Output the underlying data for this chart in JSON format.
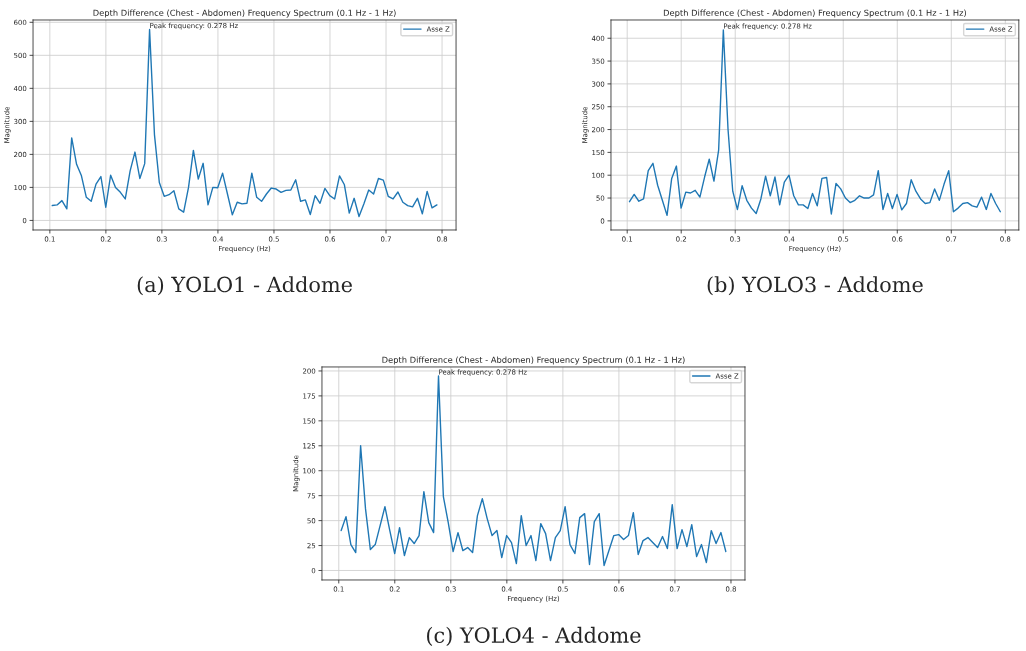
{
  "chart_data": [
    {
      "type": "line",
      "title": "Depth Difference (Chest - Abdomen) Frequency Spectrum (0.1 Hz - 1 Hz)",
      "xlabel": "Frequency (Hz)",
      "ylabel": "Magnitude",
      "x": [
        0.1043,
        0.1129,
        0.1216,
        0.1303,
        0.139,
        0.1477,
        0.1564,
        0.1651,
        0.1738,
        0.1824,
        0.1911,
        0.1998,
        0.2085,
        0.2172,
        0.2259,
        0.2346,
        0.2433,
        0.2519,
        0.2606,
        0.2693,
        0.278,
        0.2867,
        0.2954,
        0.3041,
        0.3128,
        0.3214,
        0.3301,
        0.3388,
        0.3475,
        0.3562,
        0.3649,
        0.3736,
        0.3823,
        0.3909,
        0.3996,
        0.4083,
        0.417,
        0.4257,
        0.4344,
        0.4431,
        0.4518,
        0.4605,
        0.4692,
        0.4779,
        0.4866,
        0.4953,
        0.504,
        0.5127,
        0.5214,
        0.5301,
        0.5388,
        0.5475,
        0.5561,
        0.5648,
        0.5735,
        0.5822,
        0.5909,
        0.5996,
        0.6083,
        0.617,
        0.6257,
        0.6344,
        0.6431,
        0.6518,
        0.6604,
        0.6691,
        0.6778,
        0.6865,
        0.6952,
        0.7039,
        0.7126,
        0.7213,
        0.73,
        0.7387,
        0.7474,
        0.7561,
        0.7648,
        0.7734,
        0.7821,
        0.7908
      ],
      "series": [
        {
          "name": "Asse Z",
          "color": "#1f77b4",
          "values": [
            45,
            47,
            60,
            35,
            250,
            170,
            135,
            70,
            58,
            110,
            133,
            40,
            137,
            100,
            85,
            65,
            150,
            207,
            127,
            172,
            578,
            260,
            115,
            73,
            78,
            90,
            35,
            25,
            100,
            212,
            125,
            173,
            47,
            100,
            99,
            143,
            80,
            17,
            55,
            50,
            52,
            143,
            70,
            58,
            80,
            98,
            95,
            85,
            91,
            92,
            123,
            58,
            62,
            18,
            75,
            52,
            97,
            75,
            65,
            135,
            108,
            22,
            67,
            12,
            50,
            92,
            80,
            127,
            122,
            73,
            65,
            86,
            55,
            45,
            41,
            67,
            20,
            88,
            38,
            47
          ]
        }
      ],
      "xlim": [
        0.07,
        0.825
      ],
      "xticks": [
        0.1,
        0.2,
        0.3,
        0.4,
        0.5,
        0.6,
        0.7,
        0.8
      ],
      "ylim": [
        -29,
        607
      ],
      "yticks": [
        0,
        100,
        200,
        300,
        400,
        500,
        600
      ],
      "grid": true,
      "legend": "top right",
      "subtitle": "(a) YOLO1 - Addome",
      "annotations": [
        "Peak frequency: 0.278 Hz"
      ]
    },
    {
      "type": "line",
      "title": "Depth Difference (Chest - Abdomen) Frequency Spectrum (0.1 Hz - 1 Hz)",
      "xlabel": "Frequency (Hz)",
      "ylabel": "Magnitude",
      "x": [
        0.1043,
        0.1129,
        0.1216,
        0.1303,
        0.139,
        0.1477,
        0.1564,
        0.1651,
        0.1738,
        0.1824,
        0.1911,
        0.1998,
        0.2085,
        0.2172,
        0.2259,
        0.2346,
        0.2433,
        0.2519,
        0.2606,
        0.2693,
        0.278,
        0.2867,
        0.2954,
        0.3041,
        0.3128,
        0.3214,
        0.3301,
        0.3388,
        0.3475,
        0.3562,
        0.3649,
        0.3736,
        0.3823,
        0.3909,
        0.3996,
        0.4083,
        0.417,
        0.4257,
        0.4344,
        0.4431,
        0.4518,
        0.4605,
        0.4692,
        0.4779,
        0.4866,
        0.4953,
        0.504,
        0.5127,
        0.5214,
        0.5301,
        0.5388,
        0.5475,
        0.5561,
        0.5648,
        0.5735,
        0.5822,
        0.5909,
        0.5996,
        0.6083,
        0.617,
        0.6257,
        0.6344,
        0.6431,
        0.6518,
        0.6604,
        0.6691,
        0.6778,
        0.6865,
        0.6952,
        0.7039,
        0.7126,
        0.7213,
        0.73,
        0.7387,
        0.7474,
        0.7561,
        0.7648,
        0.7734,
        0.7821,
        0.7908
      ],
      "series": [
        {
          "name": "Asse Z",
          "color": "#1f77b4",
          "values": [
            42,
            58,
            43,
            48,
            110,
            126,
            78,
            45,
            12,
            93,
            120,
            28,
            63,
            61,
            67,
            52,
            96,
            135,
            87,
            155,
            418,
            200,
            65,
            25,
            77,
            45,
            28,
            16,
            48,
            98,
            55,
            96,
            35,
            85,
            100,
            55,
            35,
            35,
            27,
            60,
            33,
            93,
            95,
            15,
            82,
            70,
            50,
            40,
            45,
            55,
            50,
            50,
            57,
            110,
            25,
            60,
            27,
            58,
            24,
            38,
            90,
            65,
            48,
            38,
            40,
            70,
            45,
            80,
            110,
            20,
            28,
            38,
            40,
            33,
            30,
            52,
            25,
            60,
            38,
            20
          ]
        }
      ],
      "xlim": [
        0.07,
        0.825
      ],
      "xticks": [
        0.1,
        0.2,
        0.3,
        0.4,
        0.5,
        0.6,
        0.7,
        0.8
      ],
      "ylim": [
        -20,
        440
      ],
      "yticks": [
        0,
        50,
        100,
        150,
        200,
        250,
        300,
        350,
        400
      ],
      "grid": true,
      "legend": "top right",
      "subtitle": "(b) YOLO3 - Addome",
      "annotations": [
        "Peak frequency: 0.278 Hz"
      ]
    },
    {
      "type": "line",
      "title": "Depth Difference (Chest - Abdomen) Frequency Spectrum (0.1 Hz - 1 Hz)",
      "xlabel": "Frequency (Hz)",
      "ylabel": "Magnitude",
      "x": [
        0.1043,
        0.1129,
        0.1216,
        0.1303,
        0.139,
        0.1477,
        0.1564,
        0.1651,
        0.1738,
        0.1824,
        0.1911,
        0.1998,
        0.2085,
        0.2172,
        0.2259,
        0.2346,
        0.2433,
        0.2519,
        0.2606,
        0.2693,
        0.278,
        0.2867,
        0.2954,
        0.3041,
        0.3128,
        0.3214,
        0.3301,
        0.3388,
        0.3475,
        0.3562,
        0.3649,
        0.3736,
        0.3823,
        0.3909,
        0.3996,
        0.4083,
        0.417,
        0.4257,
        0.4344,
        0.4431,
        0.4518,
        0.4605,
        0.4692,
        0.4779,
        0.4866,
        0.4953,
        0.504,
        0.5127,
        0.5214,
        0.5301,
        0.5388,
        0.5475,
        0.5561,
        0.5648,
        0.5735,
        0.5822,
        0.5909,
        0.5996,
        0.6083,
        0.617,
        0.6257,
        0.6344,
        0.6431,
        0.6518,
        0.6604,
        0.6691,
        0.6778,
        0.6865,
        0.6952,
        0.7039,
        0.7126,
        0.7213,
        0.73,
        0.7387,
        0.7474,
        0.7561,
        0.7648,
        0.7734,
        0.7821,
        0.7908
      ],
      "series": [
        {
          "name": "Asse Z",
          "color": "#1f77b4",
          "values": [
            40,
            54,
            26,
            18,
            125,
            62,
            21,
            26,
            45,
            64,
            40,
            17,
            43,
            15,
            33,
            27,
            35,
            79,
            48,
            38,
            195,
            74,
            48,
            19,
            38,
            20,
            23,
            18,
            55,
            72,
            52,
            35,
            40,
            13,
            35,
            28,
            7,
            55,
            25,
            35,
            10,
            47,
            37,
            10,
            33,
            40,
            64,
            26,
            17,
            53,
            57,
            6,
            49,
            57,
            5,
            20,
            35,
            36,
            31,
            35,
            58,
            16,
            30,
            33,
            28,
            23,
            34,
            22,
            66,
            22,
            41,
            24,
            46,
            14,
            26,
            8,
            40,
            27,
            38,
            19
          ]
        }
      ],
      "xlim": [
        0.07,
        0.825
      ],
      "xticks": [
        0.1,
        0.2,
        0.3,
        0.4,
        0.5,
        0.6,
        0.7,
        0.8
      ],
      "ylim": [
        -9.5,
        204
      ],
      "yticks": [
        0,
        25,
        50,
        75,
        100,
        125,
        150,
        175,
        200
      ],
      "grid": true,
      "legend": "top right",
      "subtitle": "(c) YOLO4 - Addome",
      "annotations": [
        "Peak frequency: 0.278 Hz"
      ]
    }
  ]
}
